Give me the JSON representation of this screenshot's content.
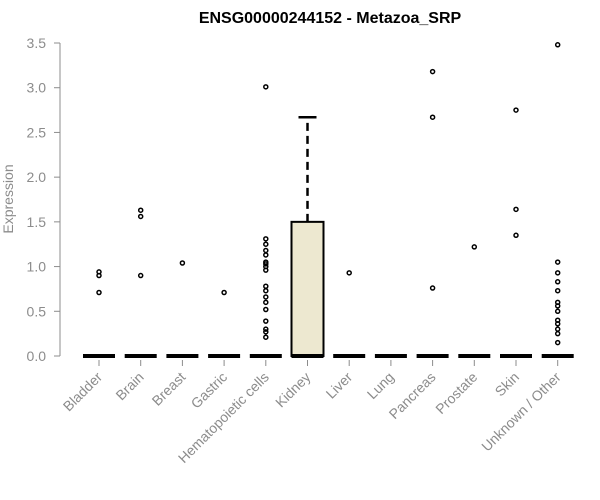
{
  "chart_data": {
    "type": "box",
    "title": "ENSG00000244152 - Metazoa_SRP",
    "xlabel": "",
    "ylabel": "Expression",
    "ylim": [
      0,
      3.5
    ],
    "yticks": [
      "0.0",
      "0.5",
      "1.0",
      "1.5",
      "2.0",
      "2.5",
      "3.0",
      "3.5"
    ],
    "grid": false,
    "box_fill": "#ede8d0",
    "categories": [
      "Bladder",
      "Brain",
      "Breast",
      "Gastric",
      "Hematopoietic cells",
      "Kidney",
      "Liver",
      "Lung",
      "Pancreas",
      "Prostate",
      "Skin",
      "Unknown / Other"
    ],
    "boxes": [
      {
        "category": "Bladder",
        "min": 0,
        "q1": 0,
        "median": 0,
        "q3": 0,
        "max": 0,
        "outliers": [
          0.71,
          0.9,
          0.94
        ]
      },
      {
        "category": "Brain",
        "min": 0,
        "q1": 0,
        "median": 0,
        "q3": 0,
        "max": 0,
        "outliers": [
          0.9,
          1.56,
          1.63
        ]
      },
      {
        "category": "Breast",
        "min": 0,
        "q1": 0,
        "median": 0,
        "q3": 0,
        "max": 0,
        "outliers": [
          1.04
        ]
      },
      {
        "category": "Gastric",
        "min": 0,
        "q1": 0,
        "median": 0,
        "q3": 0,
        "max": 0,
        "outliers": [
          0.71
        ]
      },
      {
        "category": "Hematopoietic cells",
        "min": 0,
        "q1": 0,
        "median": 0,
        "q3": 0,
        "max": 0,
        "outliers": [
          0.21,
          0.27,
          0.3,
          0.39,
          0.52,
          0.6,
          0.66,
          0.73,
          0.78,
          0.96,
          1.0,
          1.03,
          1.05,
          1.13,
          1.18,
          1.25,
          1.31,
          3.01
        ]
      },
      {
        "category": "Kidney",
        "min": 0,
        "q1": 0,
        "median": 0,
        "q3": 1.5,
        "max": 2.67,
        "outliers": []
      },
      {
        "category": "Liver",
        "min": 0,
        "q1": 0,
        "median": 0,
        "q3": 0,
        "max": 0,
        "outliers": [
          0.93
        ]
      },
      {
        "category": "Lung",
        "min": 0,
        "q1": 0,
        "median": 0,
        "q3": 0,
        "max": 0,
        "outliers": []
      },
      {
        "category": "Pancreas",
        "min": 0,
        "q1": 0,
        "median": 0,
        "q3": 0,
        "max": 0,
        "outliers": [
          0.76,
          2.67,
          3.18
        ]
      },
      {
        "category": "Prostate",
        "min": 0,
        "q1": 0,
        "median": 0,
        "q3": 0,
        "max": 0,
        "outliers": [
          1.22
        ]
      },
      {
        "category": "Skin",
        "min": 0,
        "q1": 0,
        "median": 0,
        "q3": 0,
        "max": 0,
        "outliers": [
          1.35,
          1.64,
          2.75
        ]
      },
      {
        "category": "Unknown / Other",
        "min": 0,
        "q1": 0,
        "median": 0,
        "q3": 0,
        "max": 0,
        "outliers": [
          0.15,
          0.25,
          0.3,
          0.36,
          0.4,
          0.5,
          0.56,
          0.6,
          0.73,
          0.83,
          0.93,
          1.05,
          3.48
        ]
      }
    ]
  }
}
